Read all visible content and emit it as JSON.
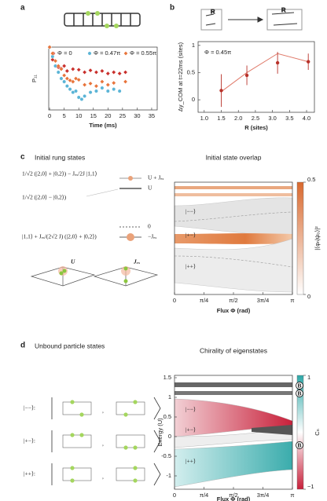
{
  "panel_labels": [
    "a",
    "b",
    "c",
    "d"
  ],
  "text": {
    "c_heading": "Initial rung states",
    "d_heading": "Unbound particle states",
    "eq1": "1/√2 (|2,0⟩ + |0,2⟩) − Jₑₓ/2J |1,1⟩",
    "eq2": "1/√2 (|2,0⟩ − |0,2⟩)",
    "eq3": "|1,1⟩ + Jₑₓ/(2√2 J) (|2,0⟩ + |0,2⟩)",
    "level1": "U + Jₑₓ",
    "level2": "U",
    "level3": "0",
    "level4": "−Jₑₓ",
    "ladder_U": "U",
    "ladder_J": "Jₑₓ",
    "R": "R",
    "kets": [
      "|−−⟩:",
      "|+−⟩:",
      "|++⟩:"
    ],
    "separator": ","
  },
  "chart_data": [
    {
      "type": "scatter",
      "xlabel": "Time (ms)",
      "ylabel": "P₁₁",
      "xlim": [
        -0.3,
        36.9
      ],
      "xticks": [
        0,
        5,
        10,
        15,
        20,
        25,
        30,
        35
      ],
      "ylim": [
        0,
        1
      ],
      "series": [
        {
          "name": "Φ = 0",
          "color": "#c9302c",
          "marker": "diamond",
          "x": [
            0,
            1,
            2,
            3,
            4,
            5,
            6,
            8,
            10,
            12,
            14,
            16,
            18,
            20,
            22,
            24,
            26
          ],
          "values": [
            1.0,
            0.8,
            0.7,
            0.68,
            0.66,
            0.7,
            0.62,
            0.65,
            0.64,
            0.6,
            0.63,
            0.6,
            0.62,
            0.58,
            0.6,
            0.58,
            0.6
          ]
        },
        {
          "name": "Φ = 0.47π",
          "color": "#5ab4d6",
          "marker": "circle",
          "x": [
            0,
            1,
            2,
            3,
            4,
            5,
            6,
            7,
            8,
            9,
            10,
            11,
            12,
            14,
            16,
            18,
            20,
            22,
            24
          ],
          "values": [
            1.0,
            0.85,
            0.7,
            0.6,
            0.5,
            0.45,
            0.38,
            0.33,
            0.28,
            0.3,
            0.2,
            0.17,
            0.22,
            0.28,
            0.3,
            0.35,
            0.3,
            0.33,
            0.3
          ]
        },
        {
          "name": "Φ = 0.55π",
          "color": "#e8743b",
          "marker": "diamond",
          "x": [
            0,
            1,
            2,
            3,
            4,
            5,
            6,
            7,
            8,
            9,
            10,
            12,
            14,
            16,
            18,
            20,
            22,
            26
          ],
          "values": [
            1.0,
            0.9,
            0.78,
            0.7,
            0.65,
            0.55,
            0.5,
            0.47,
            0.45,
            0.5,
            0.48,
            0.4,
            0.42,
            0.38,
            0.45,
            0.4,
            0.43,
            0.45
          ]
        }
      ]
    },
    {
      "type": "errorbar",
      "xlabel": "R (sites)",
      "ylabel": "Δy_COM at t=22ms (sites)",
      "annotation": "Φ = 0.45π",
      "xlim": [
        0.82,
        4.23
      ],
      "xticks": [
        {
          "value": 1,
          "label": "1.0"
        },
        1.5,
        {
          "value": 2,
          "label": "2.0"
        },
        2.5,
        {
          "value": 3,
          "label": "3.0"
        },
        3.5,
        {
          "value": 4,
          "label": "4.0"
        }
      ],
      "ylim": [
        -0.23,
        1.07
      ],
      "yticks": [
        0,
        0.5,
        1
      ],
      "color": "#b8322a",
      "x": [
        1.5,
        2.25,
        3.15,
        4.05
      ],
      "values": [
        0.17,
        0.45,
        0.68,
        0.7
      ],
      "errors": [
        0.3,
        0.18,
        0.2,
        0.15
      ],
      "theory": {
        "color": "#e07a6a",
        "values": [
          0.15,
          0.5,
          0.85,
          0.7
        ]
      }
    },
    {
      "type": "heatmap",
      "title": "Initial state overlap",
      "xlabel": "Flux Φ (rad)",
      "xlim": [
        0,
        3.1416
      ],
      "xticks": [
        0,
        {
          "value": 0.7854,
          "label": "π/4"
        },
        {
          "value": 1.5708,
          "label": "π/2"
        },
        {
          "value": 2.3562,
          "label": "3π/4"
        },
        {
          "value": 3.1416,
          "label": "π"
        }
      ],
      "state_labels": [
        "|−−⟩",
        "|+−⟩",
        "|++⟩"
      ],
      "colorbar": {
        "label": "|⟨φₙ|ψ₀⟩|²",
        "lim": [
          0,
          0.5
        ],
        "ticks": [
          0,
          0.5
        ],
        "colors": [
          "#ffffff",
          "#d9692e"
        ]
      }
    },
    {
      "type": "heatmap",
      "title": "Chirality of eigenstates",
      "xlabel": "Flux Φ (rad)",
      "ylabel": "Energy (U)",
      "xlim": [
        0,
        3.1416
      ],
      "xticks": [
        0,
        {
          "value": 0.7854,
          "label": "π/4"
        },
        {
          "value": 1.5708,
          "label": "π/2"
        },
        {
          "value": 2.3562,
          "label": "3π/4"
        },
        {
          "value": 3.1416,
          "label": "π"
        }
      ],
      "ylim": [
        -1.34,
        1.56
      ],
      "yticks": [
        1.5,
        1,
        0.5,
        0,
        {
          "value": -0.5,
          "label": "-0.5"
        },
        {
          "value": -1,
          "label": "-1"
        }
      ],
      "state_labels": [
        "|−−⟩",
        "|+−⟩",
        "|++⟩"
      ],
      "bound_label": "B",
      "bound_states": [
        1.3,
        1.1,
        -0.22
      ],
      "colorbar": {
        "label": "Cₙ",
        "lim": [
          -1,
          1
        ],
        "ticks": [
          1,
          {
            "value": -1,
            "label": "−1"
          }
        ],
        "colors": [
          "#c8203a",
          "#ffffff",
          "#2fa8a8"
        ]
      }
    }
  ]
}
